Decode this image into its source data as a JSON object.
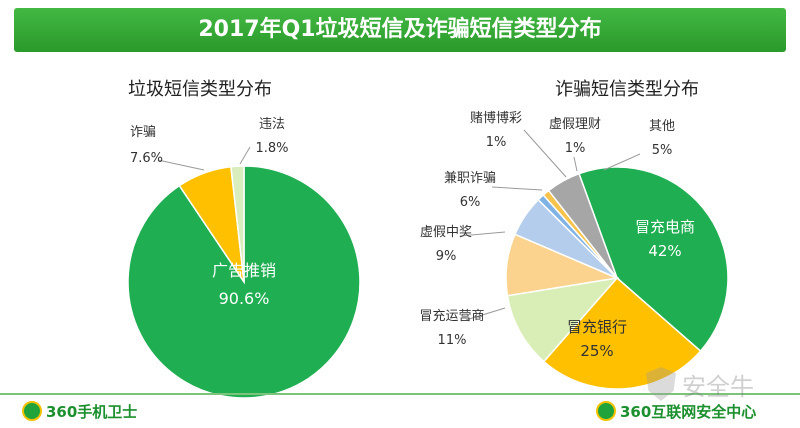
{
  "title": "2017年Q1垃圾短信及诈骗短信类型分布",
  "logos": {
    "left": "360手机卫士",
    "right": "360互联网安全中心"
  },
  "watermark": "安全牛",
  "chart_data": [
    {
      "type": "pie",
      "title": "垃圾短信类型分布",
      "slices": [
        {
          "label": "广告推销",
          "value": 90.6,
          "display": "90.6%",
          "color": "#1fae52"
        },
        {
          "label": "诈骗",
          "value": 7.6,
          "display": "7.6%",
          "color": "#ffc000"
        },
        {
          "label": "违法",
          "value": 1.8,
          "display": "1.8%",
          "color": "#d9edbd"
        }
      ]
    },
    {
      "type": "pie",
      "title": "诈骗短信类型分布",
      "slices": [
        {
          "label": "冒充电商",
          "value": 42,
          "display": "42%",
          "color": "#1fae52"
        },
        {
          "label": "冒充银行",
          "value": 25,
          "display": "25%",
          "color": "#ffc000"
        },
        {
          "label": "冒充运营商",
          "value": 11,
          "display": "11%",
          "color": "#d9edb6"
        },
        {
          "label": "虚假中奖",
          "value": 9,
          "display": "9%",
          "color": "#fbd38e"
        },
        {
          "label": "兼职诈骗",
          "value": 6,
          "display": "6%",
          "color": "#b4cdec"
        },
        {
          "label": "赌博博彩",
          "value": 1,
          "display": "1%",
          "color": "#7fb2e5"
        },
        {
          "label": "虚假理财",
          "value": 1,
          "display": "1%",
          "color": "#f7c34a"
        },
        {
          "label": "其他",
          "value": 5,
          "display": "5%",
          "color": "#a6a6a6"
        }
      ]
    }
  ]
}
